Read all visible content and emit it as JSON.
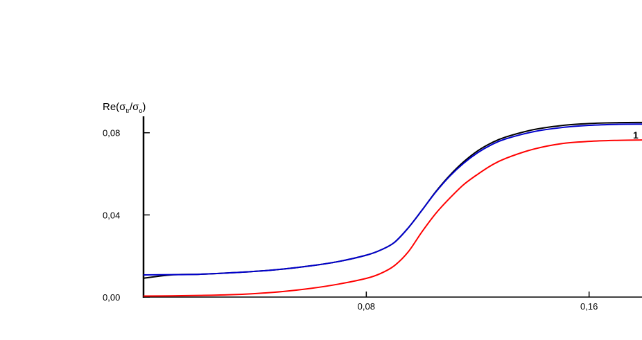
{
  "chart_data": {
    "type": "line",
    "ylabel": "Re(σtr/σo)",
    "ylabel_parts": {
      "prefix": "Re(",
      "s1": "σ",
      "sub1": "tr",
      "slash": "/",
      "s2": "σ",
      "sub2": "o",
      "suffix": ")"
    },
    "xlim": [
      0.0,
      0.179
    ],
    "ylim": [
      0.0,
      0.088
    ],
    "x_ticks": [
      {
        "value": 0.08,
        "label": "0,08"
      },
      {
        "value": 0.16,
        "label": "0,16"
      }
    ],
    "y_ticks": [
      {
        "value": 0.0,
        "label": "0,00"
      },
      {
        "value": 0.04,
        "label": "0,04"
      },
      {
        "value": 0.08,
        "label": "0,08"
      }
    ],
    "curve_label": "1",
    "series": [
      {
        "color": "#000000",
        "x": [
          0.0,
          0.01,
          0.02,
          0.03,
          0.04,
          0.05,
          0.06,
          0.07,
          0.08,
          0.085,
          0.09,
          0.095,
          0.1,
          0.105,
          0.11,
          0.115,
          0.12,
          0.125,
          0.13,
          0.14,
          0.15,
          0.16,
          0.17,
          0.179
        ],
        "y": [
          0.0092,
          0.0108,
          0.0111,
          0.0117,
          0.0125,
          0.0136,
          0.0152,
          0.0173,
          0.0204,
          0.0228,
          0.0265,
          0.0336,
          0.0423,
          0.0514,
          0.0593,
          0.0659,
          0.0712,
          0.0751,
          0.0779,
          0.0815,
          0.0835,
          0.0845,
          0.0849,
          0.085
        ]
      },
      {
        "color": "#0000cc",
        "x": [
          0.0,
          0.01,
          0.02,
          0.03,
          0.04,
          0.05,
          0.06,
          0.07,
          0.08,
          0.085,
          0.09,
          0.095,
          0.1,
          0.105,
          0.11,
          0.115,
          0.12,
          0.125,
          0.13,
          0.14,
          0.15,
          0.16,
          0.17,
          0.179
        ],
        "y": [
          0.0108,
          0.0109,
          0.0111,
          0.0117,
          0.0125,
          0.0136,
          0.0152,
          0.0173,
          0.0204,
          0.0228,
          0.0265,
          0.0336,
          0.0423,
          0.0512,
          0.0589,
          0.0652,
          0.0703,
          0.0742,
          0.077,
          0.0805,
          0.0825,
          0.0836,
          0.0841,
          0.0842
        ]
      },
      {
        "color": "#ff0000",
        "x": [
          0.0,
          0.01,
          0.02,
          0.03,
          0.04,
          0.05,
          0.06,
          0.07,
          0.08,
          0.085,
          0.09,
          0.095,
          0.1,
          0.105,
          0.11,
          0.115,
          0.12,
          0.125,
          0.13,
          0.14,
          0.15,
          0.16,
          0.17,
          0.179
        ],
        "y": [
          0.0005,
          0.0006,
          0.0008,
          0.0011,
          0.0017,
          0.0027,
          0.0042,
          0.0063,
          0.0091,
          0.0114,
          0.0152,
          0.0219,
          0.0318,
          0.0408,
          0.0482,
          0.0548,
          0.0598,
          0.0642,
          0.0675,
          0.072,
          0.0747,
          0.0758,
          0.0763,
          0.0765
        ]
      }
    ]
  }
}
